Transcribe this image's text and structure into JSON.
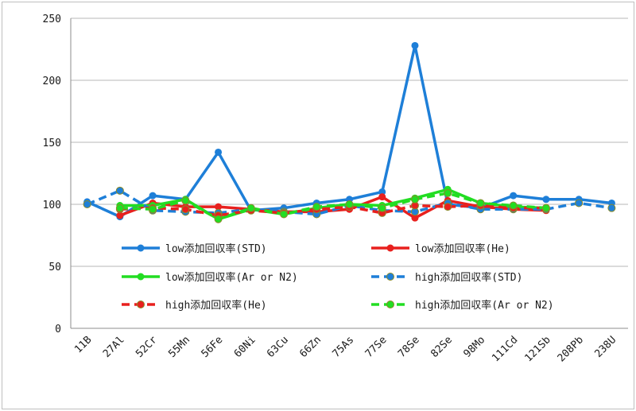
{
  "chart_data": {
    "type": "line",
    "title": "",
    "xlabel": "",
    "ylabel": "",
    "ylim": [
      0,
      250
    ],
    "yticks": [
      0,
      50,
      100,
      150,
      200,
      250
    ],
    "grid": "horizontal",
    "categories": [
      "11B",
      "27Al",
      "52Cr",
      "55Mn",
      "56Fe",
      "60Ni",
      "63Cu",
      "66Zn",
      "75As",
      "77Se",
      "78Se",
      "82Se",
      "98Mo",
      "111Cd",
      "121Sb",
      "208Pb",
      "238U"
    ],
    "series": [
      {
        "name": "low添加回収率(STD)",
        "color": "#1e7fd8",
        "dash": "solid",
        "values": [
          102,
          90,
          107,
          104,
          142,
          95,
          97,
          101,
          104,
          110,
          228,
          100,
          97,
          107,
          104,
          104,
          101
        ]
      },
      {
        "name": "low添加回収率(He)",
        "color": "#e8201e",
        "dash": "solid",
        "values": [
          null,
          91,
          101,
          98,
          98,
          96,
          94,
          94,
          96,
          106,
          89,
          103,
          98,
          96,
          95,
          null,
          null
        ]
      },
      {
        "name": "low添加回収率(Ar or N2)",
        "color": "#22dd22",
        "dash": "solid",
        "values": [
          null,
          99,
          99,
          104,
          88,
          96,
          92,
          97,
          100,
          99,
          105,
          112,
          101,
          98,
          97,
          null,
          null
        ]
      },
      {
        "name": "high添加回収率(STD)",
        "color": "#1e7fd8",
        "dash": "dashed",
        "values": [
          100,
          111,
          95,
          94,
          93,
          96,
          94,
          92,
          99,
          95,
          94,
          101,
          96,
          96,
          96,
          101,
          97
        ]
      },
      {
        "name": "high添加回収率(He)",
        "color": "#e8201e",
        "dash": "dashed",
        "values": [
          null,
          96,
          97,
          96,
          91,
          95,
          93,
          96,
          98,
          93,
          99,
          98,
          99,
          97,
          97,
          null,
          null
        ]
      },
      {
        "name": "high添加回収率(Ar or N2)",
        "color": "#22dd22",
        "dash": "dashed",
        "values": [
          null,
          97,
          96,
          103,
          88,
          97,
          92,
          98,
          100,
          97,
          104,
          109,
          101,
          99,
          97,
          null,
          null
        ]
      }
    ],
    "legend_position": "inside-bottom"
  }
}
